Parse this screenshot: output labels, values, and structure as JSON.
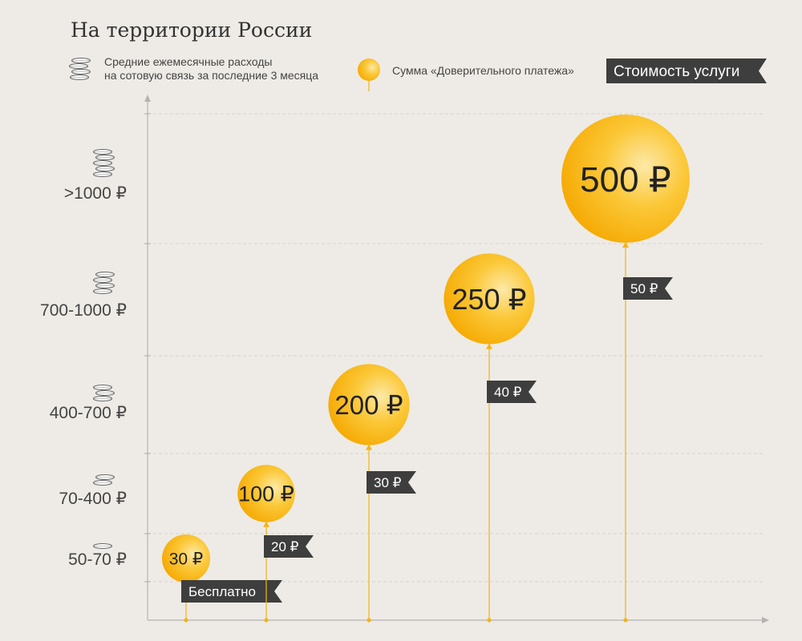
{
  "title": "На территории России",
  "legend": {
    "spend_label_line1": "Средние ежемесячные расходы",
    "spend_label_line2": "на сотовую связь за последние 3 месяца",
    "payment_label": "Сумма «Доверительного платежа»",
    "fee_label": "Стоимость услуги",
    "coin_icon": "coin-stack-icon",
    "balloon_icon": "balloon-icon"
  },
  "colors": {
    "background": "#eeebe6",
    "balloon": "#f7b500",
    "balloon_highlight": "#fde9a8",
    "string": "#f2b418",
    "tag": "#3e3e3e",
    "tag_text": "#ffffff",
    "axis": "#b3b3b3",
    "grid": "#d6d2cc",
    "text": "#333333"
  },
  "chart_data": {
    "type": "scatter",
    "title": "На территории России",
    "ylabel": "Средние ежемесячные расходы на сотовую связь за последние 3 месяца",
    "categories": [
      "50-70 ₽",
      "70-400 ₽",
      "400-700 ₽",
      "700-1000 ₽",
      ">1000 ₽"
    ],
    "coin_counts": [
      1,
      2,
      3,
      4,
      5
    ],
    "series": [
      {
        "name": "Сумма «Доверительного платежа»",
        "values": [
          30,
          100,
          200,
          250,
          500
        ],
        "labels": [
          "30 ₽",
          "100 ₽",
          "200 ₽",
          "250 ₽",
          "500 ₽"
        ]
      },
      {
        "name": "Стоимость услуги",
        "values": [
          0,
          20,
          30,
          40,
          50
        ],
        "labels": [
          "Бесплатно",
          "20 ₽",
          "30 ₽",
          "40 ₽",
          "50 ₽"
        ]
      }
    ],
    "grid": true,
    "legend": "top"
  }
}
